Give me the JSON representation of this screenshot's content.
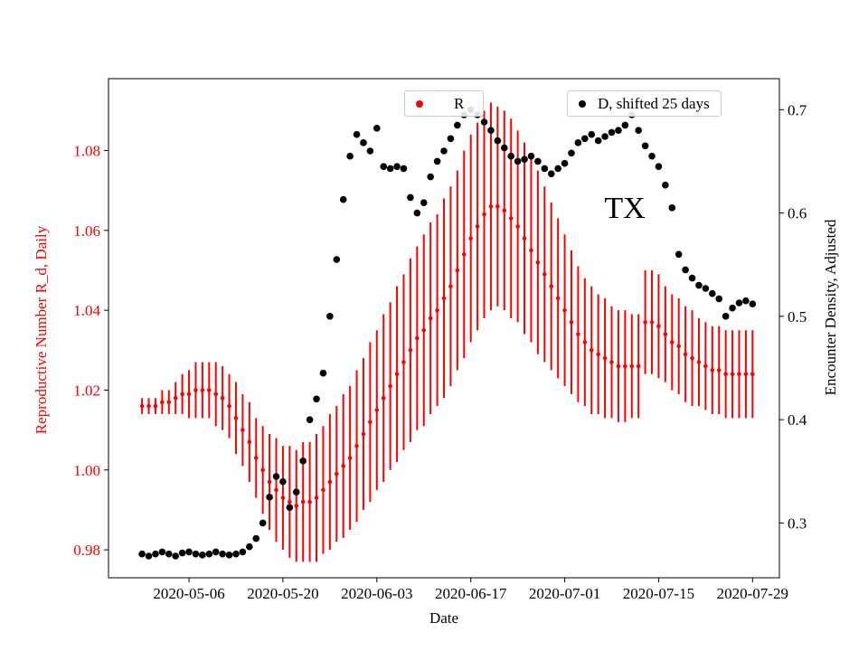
{
  "figure": {
    "background": "#ffffff"
  },
  "chart_data": {
    "type": "scatter",
    "title": "",
    "xlabel": "Date",
    "annotation": {
      "text": "TX"
    },
    "x_start": "2020-04-29",
    "x_step_days": 1,
    "x_range": [
      "2020-04-24",
      "2020-08-02"
    ],
    "x_ticks": [
      "2020-05-06",
      "2020-05-20",
      "2020-06-03",
      "2020-06-17",
      "2020-07-01",
      "2020-07-15",
      "2020-07-29"
    ],
    "left_axis": {
      "label": "Reproductive Number R_d, Daily",
      "color": "#ff0000",
      "tick_labels": [
        "0.98",
        "1.00",
        "1.02",
        "1.04",
        "1.06",
        "1.08"
      ],
      "range": [
        0.973,
        1.098
      ]
    },
    "right_axis": {
      "label": "Encounter Density, Adjusted",
      "color": "#000000",
      "tick_labels": [
        "0.3",
        "0.4",
        "0.5",
        "0.6",
        "0.7"
      ],
      "range": [
        0.247,
        0.73
      ]
    },
    "legend": [
      {
        "label": "R",
        "color": "#ff0000"
      },
      {
        "label": "D, shifted 25 days",
        "color": "#000000"
      }
    ],
    "series": [
      {
        "name": "R",
        "axis": "left",
        "color": "#ff0000",
        "marker": "dot-with-errorbar",
        "values": [
          1.016,
          1.016,
          1.016,
          1.017,
          1.017,
          1.018,
          1.019,
          1.019,
          1.02,
          1.02,
          1.02,
          1.019,
          1.018,
          1.016,
          1.013,
          1.01,
          1.007,
          1.003,
          1.0,
          0.997,
          0.995,
          0.993,
          0.992,
          0.991,
          0.992,
          0.992,
          0.993,
          0.995,
          0.997,
          0.999,
          1.001,
          1.003,
          1.006,
          1.009,
          1.012,
          1.015,
          1.018,
          1.021,
          1.024,
          1.027,
          1.03,
          1.033,
          1.035,
          1.038,
          1.04,
          1.043,
          1.046,
          1.05,
          1.054,
          1.058,
          1.061,
          1.064,
          1.066,
          1.066,
          1.065,
          1.063,
          1.061,
          1.058,
          1.055,
          1.052,
          1.049,
          1.046,
          1.043,
          1.04,
          1.037,
          1.034,
          1.032,
          1.03,
          1.029,
          1.028,
          1.027,
          1.026,
          1.026,
          1.026,
          1.026,
          1.037,
          1.037,
          1.036,
          1.034,
          1.032,
          1.031,
          1.029,
          1.028,
          1.027,
          1.026,
          1.025,
          1.025,
          1.024,
          1.024,
          1.024,
          1.024,
          1.024
        ],
        "errors": [
          0.002,
          0.002,
          0.002,
          0.003,
          0.003,
          0.004,
          0.005,
          0.006,
          0.007,
          0.007,
          0.007,
          0.008,
          0.008,
          0.008,
          0.009,
          0.009,
          0.01,
          0.01,
          0.011,
          0.012,
          0.013,
          0.013,
          0.014,
          0.014,
          0.015,
          0.015,
          0.016,
          0.016,
          0.017,
          0.017,
          0.018,
          0.018,
          0.019,
          0.019,
          0.02,
          0.02,
          0.021,
          0.021,
          0.022,
          0.022,
          0.023,
          0.023,
          0.024,
          0.024,
          0.024,
          0.025,
          0.025,
          0.025,
          0.026,
          0.026,
          0.026,
          0.026,
          0.026,
          0.025,
          0.025,
          0.025,
          0.024,
          0.024,
          0.023,
          0.023,
          0.022,
          0.021,
          0.02,
          0.019,
          0.018,
          0.017,
          0.016,
          0.016,
          0.015,
          0.015,
          0.014,
          0.014,
          0.014,
          0.013,
          0.013,
          0.013,
          0.013,
          0.013,
          0.012,
          0.012,
          0.012,
          0.012,
          0.012,
          0.011,
          0.011,
          0.011,
          0.011,
          0.011,
          0.011,
          0.011,
          0.011,
          0.011
        ]
      },
      {
        "name": "D, shifted 25 days",
        "axis": "right",
        "color": "#000000",
        "marker": "dot",
        "values": [
          0.27,
          0.268,
          0.27,
          0.272,
          0.27,
          0.268,
          0.271,
          0.272,
          0.27,
          0.269,
          0.27,
          0.272,
          0.27,
          0.269,
          0.27,
          0.272,
          0.277,
          0.285,
          0.3,
          0.325,
          0.345,
          0.34,
          0.315,
          0.33,
          0.36,
          0.4,
          0.42,
          0.445,
          0.5,
          0.555,
          0.613,
          0.655,
          0.676,
          0.668,
          0.66,
          0.682,
          0.645,
          0.643,
          0.645,
          0.643,
          0.615,
          0.6,
          0.61,
          0.635,
          0.65,
          0.66,
          0.672,
          0.685,
          0.695,
          0.7,
          0.695,
          0.688,
          0.68,
          0.67,
          0.663,
          0.655,
          0.65,
          0.652,
          0.655,
          0.65,
          0.643,
          0.638,
          0.643,
          0.648,
          0.658,
          0.668,
          0.672,
          0.676,
          0.67,
          0.674,
          0.678,
          0.68,
          0.685,
          0.695,
          0.68,
          0.665,
          0.655,
          0.645,
          0.627,
          0.605,
          0.56,
          0.545,
          0.537,
          0.53,
          0.527,
          0.522,
          0.517,
          0.5,
          0.508,
          0.513,
          0.515,
          0.512
        ]
      }
    ]
  }
}
